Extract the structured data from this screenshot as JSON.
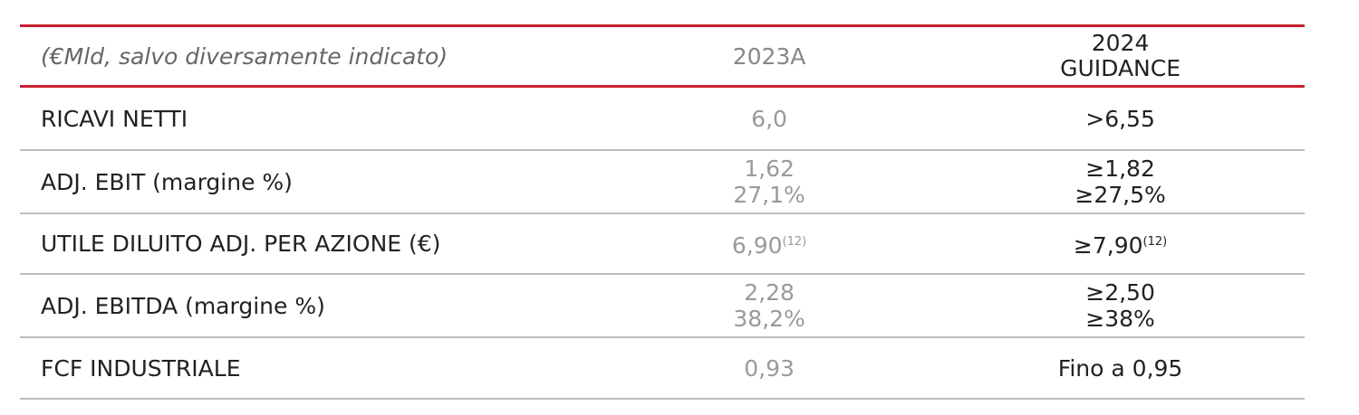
{
  "table": {
    "header": {
      "label": "(€Mld, salvo diversamente indicato)",
      "col1": "2023A",
      "col2": [
        "2024",
        "GUIDANCE"
      ]
    },
    "rows": [
      {
        "label": "RICAVI NETTI",
        "cells": [
          {
            "lines": [
              "6,0"
            ]
          },
          {
            "lines": [
              ">6,55"
            ]
          }
        ]
      },
      {
        "label": "ADJ. EBIT",
        "note": "(margine %)",
        "cells": [
          {
            "lines": [
              "1,62",
              "27,1%"
            ]
          },
          {
            "lines": [
              "≥1,82",
              "≥27,5%"
            ]
          }
        ]
      },
      {
        "label": "UTILE DILUITO ADJ. PER AZIONE (€)",
        "cells": [
          {
            "lines": [
              "6,90"
            ],
            "sup": "(12)"
          },
          {
            "lines": [
              "≥7,90"
            ],
            "sup": "(12)"
          }
        ]
      },
      {
        "label": "ADJ. EBITDA",
        "note": "(margine %)",
        "cells": [
          {
            "lines": [
              "2,28",
              "38,2%"
            ]
          },
          {
            "lines": [
              "≥2,50",
              "≥38%"
            ]
          }
        ]
      },
      {
        "label": "FCF INDUSTRIALE",
        "cells": [
          {
            "lines": [
              "0,93"
            ]
          },
          {
            "lines": [
              "Fino a 0,95"
            ]
          }
        ]
      }
    ]
  }
}
